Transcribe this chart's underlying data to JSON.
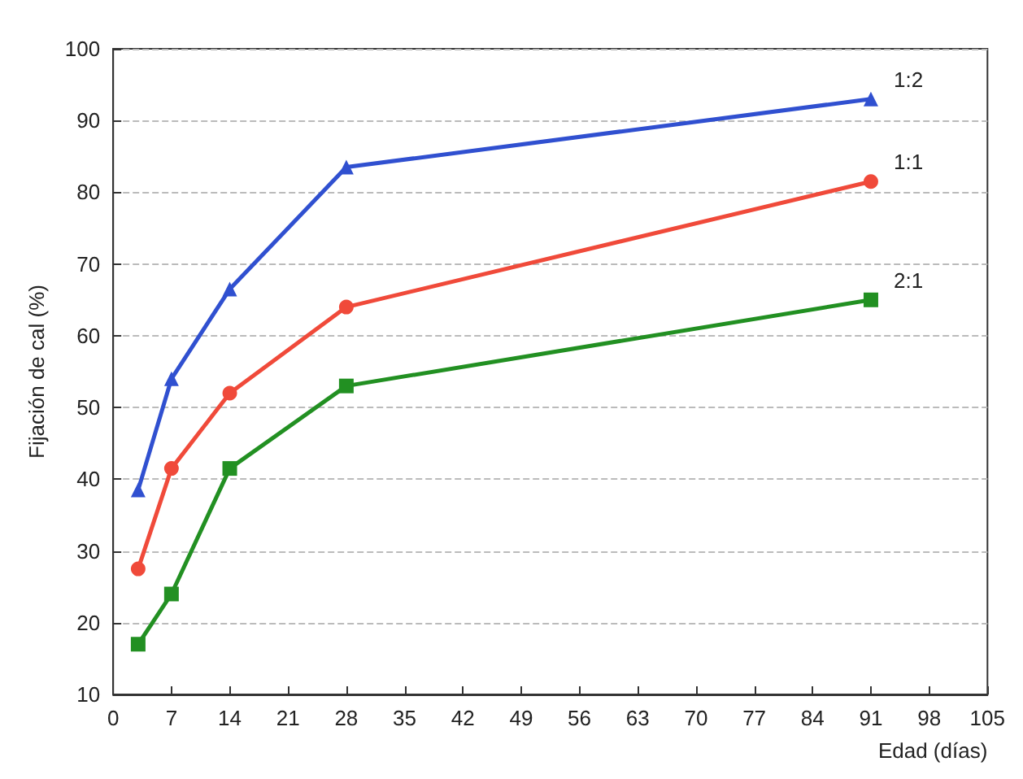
{
  "chart_data": {
    "type": "line",
    "xlabel": "Edad (días)",
    "ylabel": "Fijación de cal (%)",
    "x": [
      3,
      7,
      14,
      28,
      91
    ],
    "series": [
      {
        "name": "1:2",
        "color": "#3050d0",
        "values": [
          38.5,
          54,
          66.5,
          83.5,
          93
        ],
        "marker": "triangle"
      },
      {
        "name": "1:1",
        "color": "#f04a3a",
        "values": [
          27.5,
          41.5,
          52,
          64,
          81.5
        ],
        "marker": "circle"
      },
      {
        "name": "2:1",
        "color": "#229022",
        "values": [
          17,
          24,
          41.5,
          53,
          65
        ],
        "marker": "square"
      }
    ],
    "xlim": [
      0,
      105
    ],
    "xticks": [
      0,
      7,
      14,
      21,
      28,
      35,
      42,
      49,
      56,
      63,
      70,
      77,
      84,
      91,
      98,
      105
    ],
    "ylim": [
      10,
      100
    ],
    "yticks": [
      10,
      20,
      30,
      40,
      50,
      60,
      70,
      80,
      90,
      100
    ],
    "grid": "y",
    "legend": false,
    "line_style": "solid"
  }
}
